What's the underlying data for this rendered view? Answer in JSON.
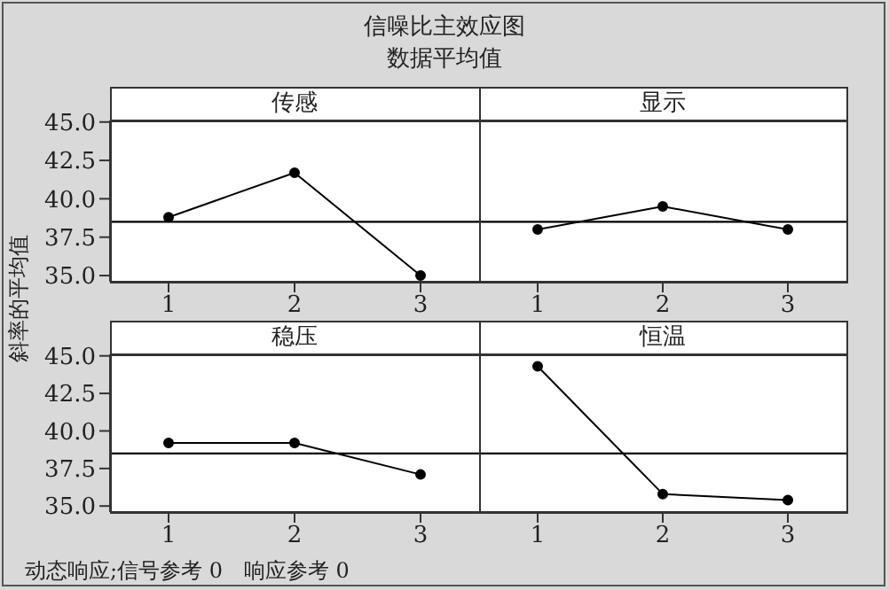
{
  "chart_data": [
    {
      "type": "line",
      "title": "传感",
      "categories": [
        "1",
        "2",
        "3"
      ],
      "values": [
        38.8,
        41.7,
        35.0
      ],
      "color": "#000000",
      "marker": "circle",
      "line_style": "solid",
      "ylim": [
        34.6,
        45.1
      ],
      "yticks": [
        {
          "value": 35,
          "label": "35.0"
        },
        {
          "value": 37.5,
          "label": "37.5"
        },
        {
          "value": 40,
          "label": "40.0"
        },
        {
          "value": 42.5,
          "label": "42.5"
        },
        {
          "value": 45,
          "label": "45.0"
        }
      ],
      "ref_lines": [
        {
          "axis": "y",
          "value": 38.5,
          "color": "#000000"
        }
      ],
      "grid": false,
      "legend": false,
      "ylabel": "斜率的平均值",
      "annotations": [
        "信噪比主效应图",
        "数据平均值",
        "动态响应;信号参考 0　响应参考 0"
      ]
    },
    {
      "type": "line",
      "title": "显示",
      "categories": [
        "1",
        "2",
        "3"
      ],
      "values": [
        38.0,
        39.5,
        38.0
      ],
      "color": "#000000",
      "marker": "circle",
      "line_style": "solid",
      "ylim": [
        34.6,
        45.1
      ],
      "ref_lines": [
        {
          "axis": "y",
          "value": 38.5,
          "color": "#000000"
        }
      ],
      "grid": false,
      "legend": false,
      "tick_labels": "x"
    },
    {
      "type": "line",
      "title": "稳压",
      "categories": [
        "1",
        "2",
        "3"
      ],
      "values": [
        39.2,
        39.2,
        37.1
      ],
      "color": "#000000",
      "marker": "circle",
      "line_style": "solid",
      "ylim": [
        34.6,
        45.1
      ],
      "yticks": [
        {
          "value": 35,
          "label": "35.0"
        },
        {
          "value": 37.5,
          "label": "37.5"
        },
        {
          "value": 40,
          "label": "40.0"
        },
        {
          "value": 42.5,
          "label": "42.5"
        },
        {
          "value": 45,
          "label": "45.0"
        }
      ],
      "ref_lines": [
        {
          "axis": "y",
          "value": 38.5,
          "color": "#000000"
        }
      ],
      "grid": false,
      "legend": false
    },
    {
      "type": "line",
      "title": "恒温",
      "categories": [
        "1",
        "2",
        "3"
      ],
      "values": [
        44.3,
        35.8,
        35.4
      ],
      "color": "#000000",
      "marker": "circle",
      "line_style": "solid",
      "ylim": [
        34.6,
        45.1
      ],
      "ref_lines": [
        {
          "axis": "y",
          "value": 38.5,
          "color": "#000000"
        }
      ],
      "grid": false,
      "legend": false,
      "tick_labels": "x"
    }
  ]
}
